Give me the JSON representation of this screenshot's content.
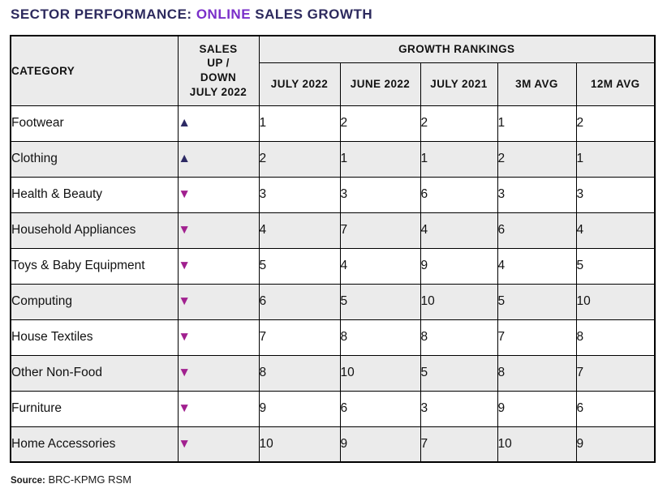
{
  "title": {
    "part1": "SECTOR PERFORMANCE: ",
    "highlight": "ONLINE",
    "part2": " SALES GROWTH"
  },
  "source": {
    "label": "Source:",
    "value": " BRC-KPMG RSM"
  },
  "icons": {
    "up": "▲",
    "down": "▼"
  },
  "colors": {
    "title_navy": "#2d2a5e",
    "title_purple": "#7a2fc9",
    "up_arrow": "#2d2a64",
    "down_arrow": "#a1208f",
    "header_bg": "#ebebeb",
    "alt_row_bg": "#ebebeb",
    "border": "#000000"
  },
  "chart_data": {
    "type": "table",
    "title": "SECTOR PERFORMANCE: ONLINE SALES GROWTH",
    "header": {
      "category": "CATEGORY",
      "sales_up_down": "SALES\nUP /\nDOWN\nJULY 2022",
      "group": "GROWTH RANKINGS",
      "rank_columns": [
        "JULY 2022",
        "JUNE 2022",
        "JULY 2021",
        "3M AVG",
        "12M AVG"
      ]
    },
    "rows": [
      {
        "category": "Footwear",
        "trend": "up",
        "ranks": [
          1,
          2,
          2,
          1,
          2
        ]
      },
      {
        "category": "Clothing",
        "trend": "up",
        "ranks": [
          2,
          1,
          1,
          2,
          1
        ]
      },
      {
        "category": "Health & Beauty",
        "trend": "down",
        "ranks": [
          3,
          3,
          6,
          3,
          3
        ]
      },
      {
        "category": "Household Appliances",
        "trend": "down",
        "ranks": [
          4,
          7,
          4,
          6,
          4
        ]
      },
      {
        "category": "Toys & Baby Equipment",
        "trend": "down",
        "ranks": [
          5,
          4,
          9,
          4,
          5
        ]
      },
      {
        "category": "Computing",
        "trend": "down",
        "ranks": [
          6,
          5,
          10,
          5,
          10
        ]
      },
      {
        "category": "House Textiles",
        "trend": "down",
        "ranks": [
          7,
          8,
          8,
          7,
          8
        ]
      },
      {
        "category": "Other Non-Food",
        "trend": "down",
        "ranks": [
          8,
          10,
          5,
          8,
          7
        ]
      },
      {
        "category": "Furniture",
        "trend": "down",
        "ranks": [
          9,
          6,
          3,
          9,
          6
        ]
      },
      {
        "category": "Home Accessories",
        "trend": "down",
        "ranks": [
          10,
          9,
          7,
          10,
          9
        ]
      }
    ],
    "source": "Source: BRC-KPMG RSM"
  }
}
